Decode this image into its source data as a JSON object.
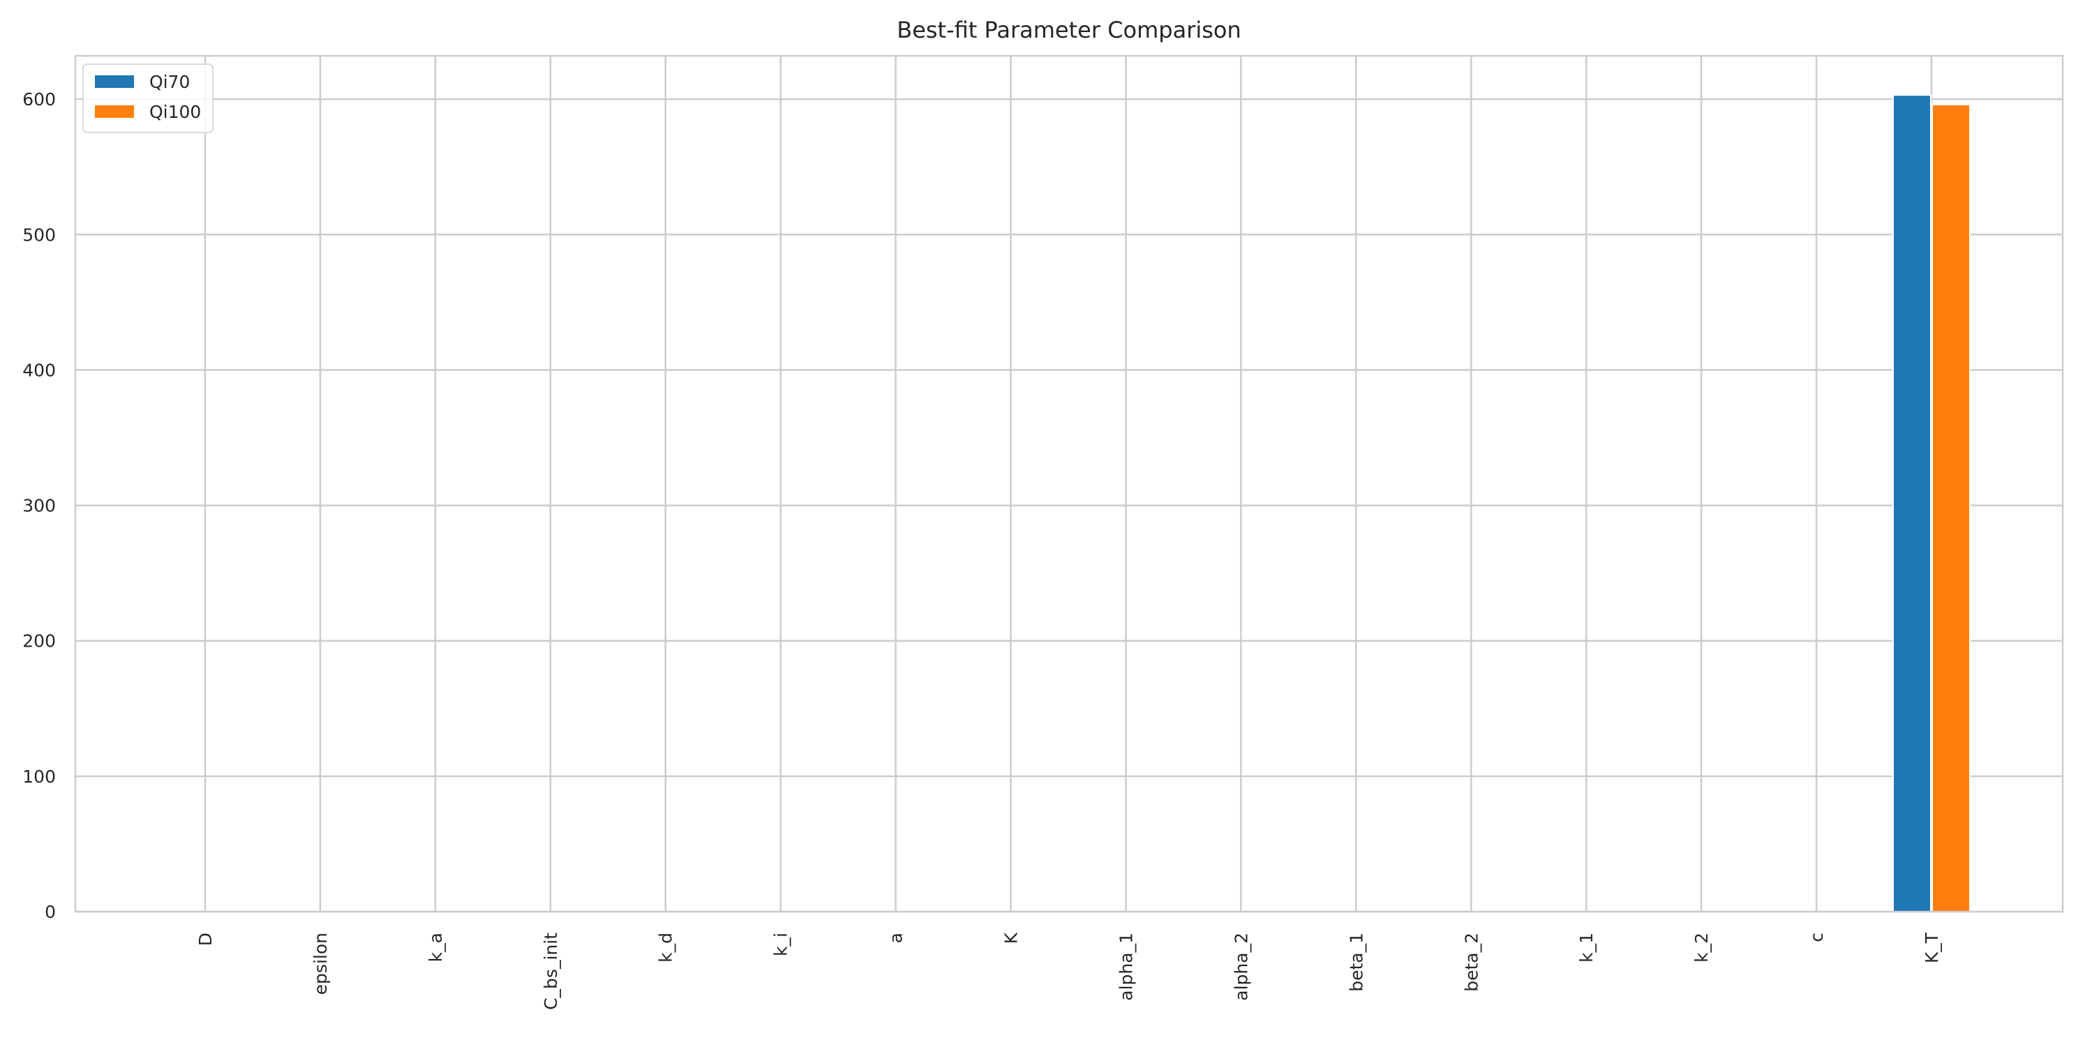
{
  "chart_data": {
    "type": "bar",
    "title": "Best-fit Parameter Comparison",
    "xlabel": "",
    "ylabel": "",
    "categories": [
      "D",
      "epsilon",
      "k_a",
      "C_bs_init",
      "k_d",
      "k_i",
      "a",
      "K",
      "alpha_1",
      "alpha_2",
      "beta_1",
      "beta_2",
      "k_1",
      "k_2",
      "c",
      "K_T"
    ],
    "series": [
      {
        "name": "Qi70",
        "color": "#1f77b4",
        "values": [
          0,
          0,
          0,
          0,
          0,
          0,
          0,
          0,
          0,
          0,
          0,
          0,
          0,
          0,
          0,
          603
        ]
      },
      {
        "name": "Qi100",
        "color": "#ff7f0e",
        "values": [
          0,
          0,
          0,
          0,
          0,
          0,
          0,
          0,
          0,
          0,
          0,
          0,
          0,
          0,
          0,
          596
        ]
      }
    ],
    "ylim": [
      0,
      632
    ],
    "yticks": [
      0,
      100,
      200,
      300,
      400,
      500,
      600
    ],
    "grid": true,
    "legend": "top-left"
  }
}
